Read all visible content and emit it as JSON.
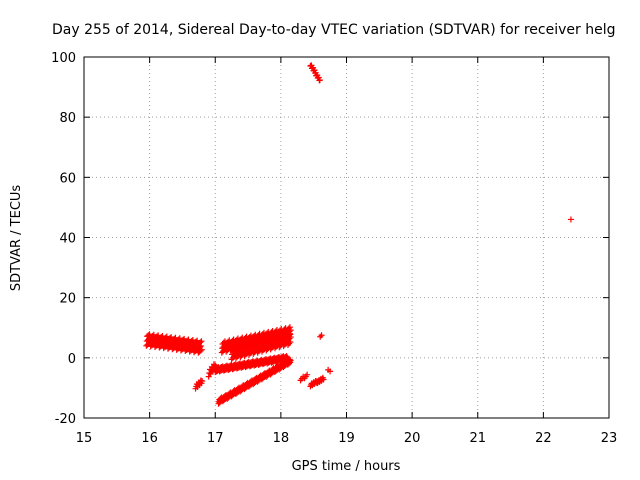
{
  "chart_data": {
    "type": "scatter",
    "title": "Day 255 of 2014, Sidereal Day-to-day VTEC variation (SDTVAR) for receiver helg",
    "xlabel": "GPS time / hours",
    "ylabel": "SDTVAR / TECUs",
    "xlim": [
      15,
      23
    ],
    "ylim": [
      -20,
      100
    ],
    "xticks": [
      "15",
      "16",
      "17",
      "18",
      "19",
      "20",
      "21",
      "22",
      "23"
    ],
    "yticks": [
      "-20",
      "0",
      "20",
      "40",
      "60",
      "80",
      "100"
    ],
    "grid": true,
    "marker": "plus",
    "color": "#ff0000",
    "clusters": [
      {
        "x": [
          15.95,
          16.8
        ],
        "y": [
          6.0,
          3.5
        ],
        "thickness": 4.0,
        "step": 0.006
      },
      {
        "x": [
          16.7,
          16.8
        ],
        "y": [
          -9.5,
          -8.0
        ],
        "thickness": 1.5,
        "step": 0.01
      },
      {
        "x": [
          16.9,
          17.0
        ],
        "y": [
          -5.0,
          -3.0
        ],
        "thickness": 2.5,
        "step": 0.01
      },
      {
        "x": [
          17.0,
          18.1
        ],
        "y": [
          -4.0,
          0.0
        ],
        "thickness": 1.5,
        "step": 0.006
      },
      {
        "x": [
          17.05,
          18.15
        ],
        "y": [
          -14.5,
          -1.0
        ],
        "thickness": 1.5,
        "step": 0.006
      },
      {
        "x": [
          17.1,
          18.15
        ],
        "y": [
          3.5,
          8.5
        ],
        "thickness": 3.5,
        "step": 0.006
      },
      {
        "x": [
          17.25,
          18.15
        ],
        "y": [
          1.5,
          6.5
        ],
        "thickness": 4.0,
        "step": 0.006
      },
      {
        "x": [
          18.3,
          18.4
        ],
        "y": [
          -7.0,
          -6.0
        ],
        "thickness": 1.0,
        "step": 0.02
      },
      {
        "x": [
          18.45,
          18.65
        ],
        "y": [
          -9.0,
          -7.0
        ],
        "thickness": 1.0,
        "step": 0.01
      },
      {
        "x": [
          18.45,
          18.6
        ],
        "y": [
          97.5,
          92.0
        ],
        "thickness": 1.0,
        "step": 0.008
      }
    ],
    "points": [
      [
        18.6,
        7.0
      ],
      [
        18.62,
        7.5
      ],
      [
        18.75,
        -4.5
      ],
      [
        18.72,
        -4.0
      ],
      [
        22.42,
        46.0
      ]
    ]
  }
}
